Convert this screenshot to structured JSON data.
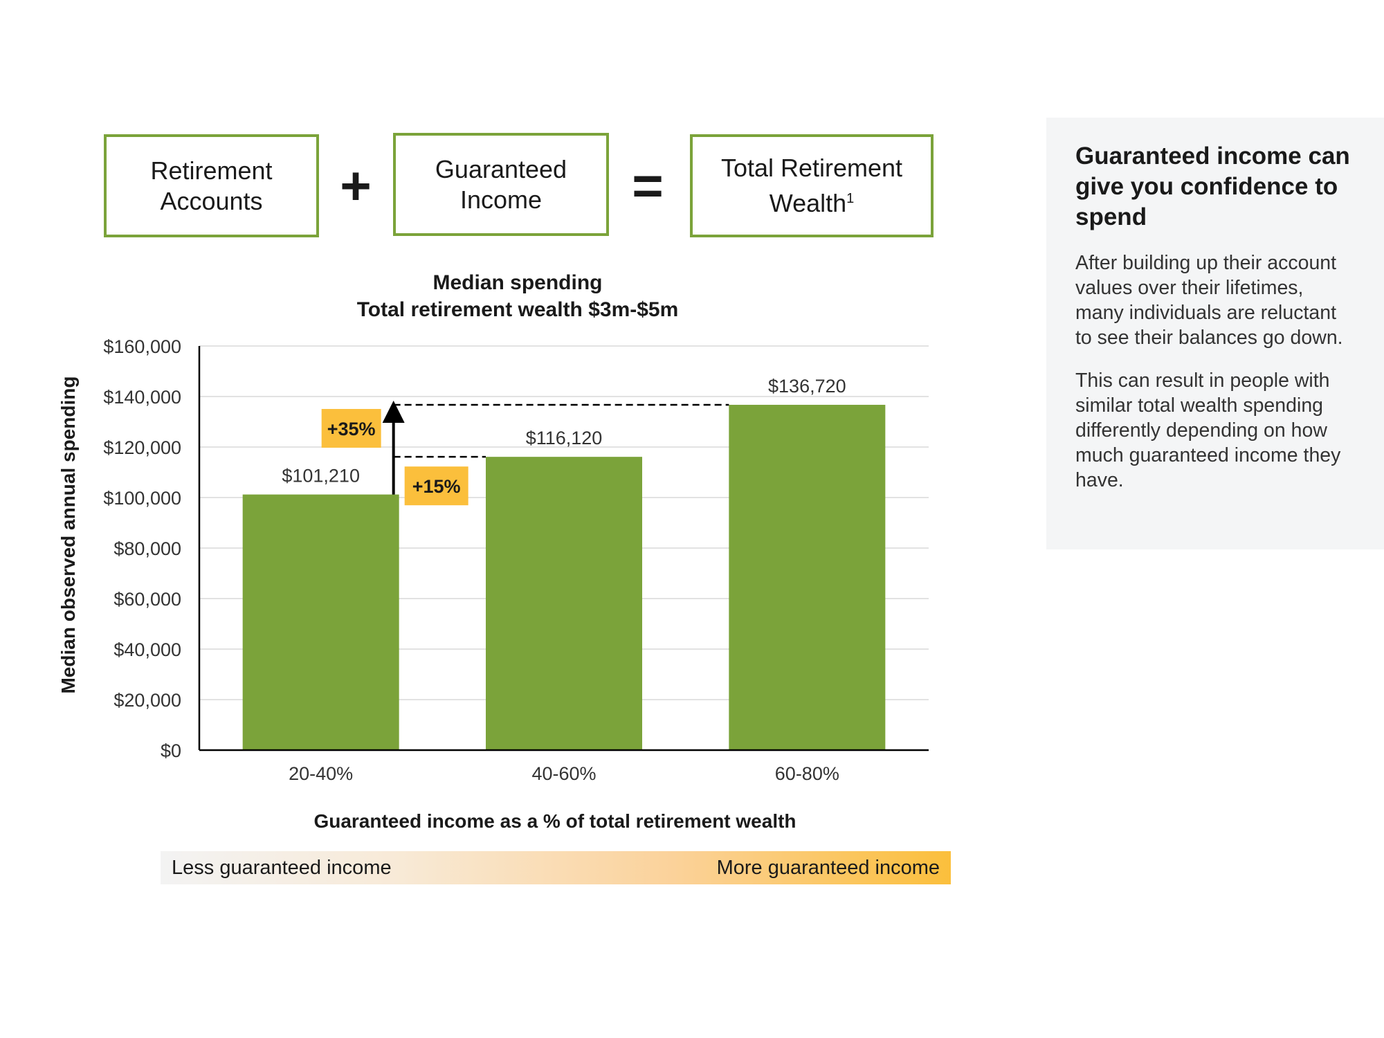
{
  "equation": {
    "box1": "Retirement Accounts",
    "plus": "+",
    "box2": "Guaranteed Income",
    "equals": "=",
    "box3": "Total Retirement Wealth",
    "box3_sup": "1"
  },
  "chart_data": {
    "type": "bar",
    "title": "Median spending",
    "subtitle": "Total retirement wealth $3m-$5m",
    "xlabel": "Guaranteed income as a % of total retirement wealth",
    "ylabel": "Median observed annual spending",
    "categories": [
      "20-40%",
      "40-60%",
      "60-80%"
    ],
    "values": [
      101210,
      116120,
      136720
    ],
    "value_labels": [
      "$101,210",
      "$116,120",
      "$136,720"
    ],
    "ylim": [
      0,
      160000
    ],
    "yticks": [
      0,
      20000,
      40000,
      60000,
      80000,
      100000,
      120000,
      140000,
      160000
    ],
    "ytick_labels": [
      "$0",
      "$20,000",
      "$40,000",
      "$60,000",
      "$80,000",
      "$100,000",
      "$120,000",
      "$140,000",
      "$160,000"
    ],
    "grid": true,
    "annotations": [
      {
        "text": "+15%",
        "from_value": 101210,
        "to_value": 116120
      },
      {
        "text": "+35%",
        "from_value": 101210,
        "to_value": 136720
      }
    ],
    "colors": {
      "bar": "#7ba33a",
      "annotation": "#fbbf3c",
      "grid": "#d9d9d9"
    }
  },
  "scale": {
    "left_label": "Less guaranteed income",
    "right_label": "More guaranteed income"
  },
  "side_panel": {
    "title": "Guaranteed income can give you confidence to spend",
    "paragraph1": "After building up their account values over their lifetimes, many individuals are reluctant to see their balances go down.",
    "paragraph2": "This can result in people with similar total wealth spending differently depending on how much guaranteed income they have."
  }
}
